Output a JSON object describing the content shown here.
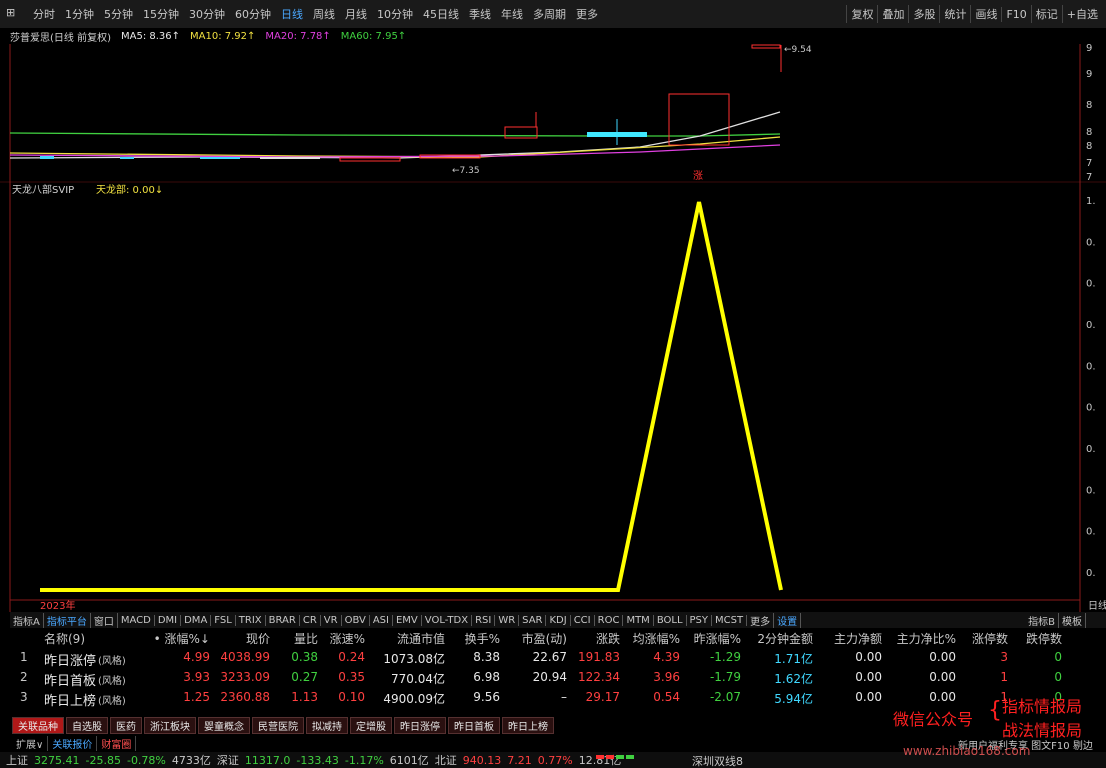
{
  "toolbar": {
    "periods": [
      "分时",
      "1分钟",
      "5分钟",
      "15分钟",
      "30分钟",
      "60分钟",
      "日线",
      "周线",
      "月线",
      "10分钟",
      "45日线",
      "季线",
      "年线",
      "多周期",
      "更多"
    ],
    "active_period": "日线",
    "tools": [
      "复权",
      "叠加",
      "多股",
      "统计",
      "画线",
      "F10",
      "标记",
      "+自选"
    ]
  },
  "quote_header": {
    "title": "莎普爱思(日线 前复权)",
    "ma": [
      {
        "label": "MA5: 8.36↑",
        "color": "#e8e8e8"
      },
      {
        "label": "MA10: 7.92↑",
        "color": "#f0e040"
      },
      {
        "label": "MA20: 7.78↑",
        "color": "#e040e0"
      },
      {
        "label": "MA60: 7.95↑",
        "color": "#40d040"
      }
    ]
  },
  "main_chart": {
    "axis_labels": [
      "9",
      "9",
      "8",
      "8",
      "8",
      "7",
      "7"
    ],
    "high_marker": "←9.54",
    "low_marker": "←7.35",
    "signal": "涨"
  },
  "indicator": {
    "name": "天龙八部SVIP",
    "value_label": "天龙部: 0.00↓",
    "axis_labels": [
      "1.",
      "0.",
      "0.",
      "0.",
      "0.",
      "0.",
      "0.",
      "0.",
      "0.",
      "0."
    ],
    "year": "2023年"
  },
  "indicator_tabs": [
    "指标A",
    "指标平台",
    "窗口",
    "MACD",
    "DMI",
    "DMA",
    "FSL",
    "TRIX",
    "BRAR",
    "CR",
    "VR",
    "OBV",
    "ASI",
    "EMV",
    "VOL-TDX",
    "RSI",
    "WR",
    "SAR",
    "KDJ",
    "CCI",
    "ROC",
    "MTM",
    "BOLL",
    "PSY",
    "MCST",
    "更多",
    "设置"
  ],
  "indicator_tabs_right": [
    "指标B",
    "模板"
  ],
  "right_edge_label": "日线",
  "table": {
    "header": [
      "名称(9)",
      "• 涨幅%↓",
      "现价",
      "量比",
      "涨速%",
      "流通市值",
      "换手%",
      "市盈(动)",
      "涨跌",
      "均涨幅%",
      "昨涨幅%",
      "2分钟金额",
      "主力净额",
      "主力净比%",
      "涨停数",
      "跌停数"
    ],
    "rows": [
      {
        "index": "1",
        "name": "昨日涨停",
        "tag": "(风格)",
        "cells": [
          "4.99",
          "4038.99",
          "0.38",
          "0.24",
          "1073.08亿",
          "8.38",
          "22.67",
          "191.83",
          "4.39",
          "-1.29",
          "1.71亿",
          "0.00",
          "0.00",
          "3",
          "0"
        ]
      },
      {
        "index": "2",
        "name": "昨日首板",
        "tag": "(风格)",
        "cells": [
          "3.93",
          "3233.09",
          "0.27",
          "0.35",
          "770.04亿",
          "6.98",
          "20.94",
          "122.34",
          "3.96",
          "-1.79",
          "1.62亿",
          "0.00",
          "0.00",
          "1",
          "0"
        ]
      },
      {
        "index": "3",
        "name": "昨日上榜",
        "tag": "(风格)",
        "cells": [
          "1.25",
          "2360.88",
          "1.13",
          "0.10",
          "4900.09亿",
          "9.56",
          "–",
          "29.17",
          "0.54",
          "-2.07",
          "5.94亿",
          "0.00",
          "0.00",
          "1",
          "0"
        ]
      }
    ]
  },
  "sector_tabs": [
    "关联品种",
    "自选股",
    "医药",
    "浙江板块",
    "婴童概念",
    "民营医院",
    "拟减持",
    "定增股",
    "昨日涨停",
    "昨日首板",
    "昨日上榜"
  ],
  "sub_bar": {
    "items": [
      "扩展∨",
      "关联报价",
      "财富圈"
    ],
    "notice": "新用户福利专享 图文F10 剔边"
  },
  "status_bar": [
    {
      "text": "上证",
      "color": "#c8c8c8"
    },
    {
      "text": "3275.41",
      "color": "#40d040"
    },
    {
      "text": "-25.85",
      "color": "#40d040"
    },
    {
      "text": "-0.78%",
      "color": "#40d040"
    },
    {
      "text": "4733亿",
      "color": "#c8c8c8"
    },
    {
      "text": "深证",
      "color": "#c8c8c8"
    },
    {
      "text": "11317.0",
      "color": "#40d040"
    },
    {
      "text": "-133.43",
      "color": "#40d040"
    },
    {
      "text": "-1.17%",
      "color": "#40d040"
    },
    {
      "text": "6101亿",
      "color": "#c8c8c8"
    },
    {
      "text": "北证",
      "color": "#c8c8c8"
    },
    {
      "text": "940.13",
      "color": "#ff4040"
    },
    {
      "text": "7.21",
      "color": "#ff4040"
    },
    {
      "text": "0.77%",
      "color": "#ff4040"
    },
    {
      "text": "12.81亿",
      "color": "#c8c8c8"
    }
  ],
  "status_right": "深圳双线8",
  "watermark": {
    "label": "微信公众号",
    "line1": "指标情报局",
    "line2": "战法情报局",
    "url": "www.zhibiao168.com"
  }
}
